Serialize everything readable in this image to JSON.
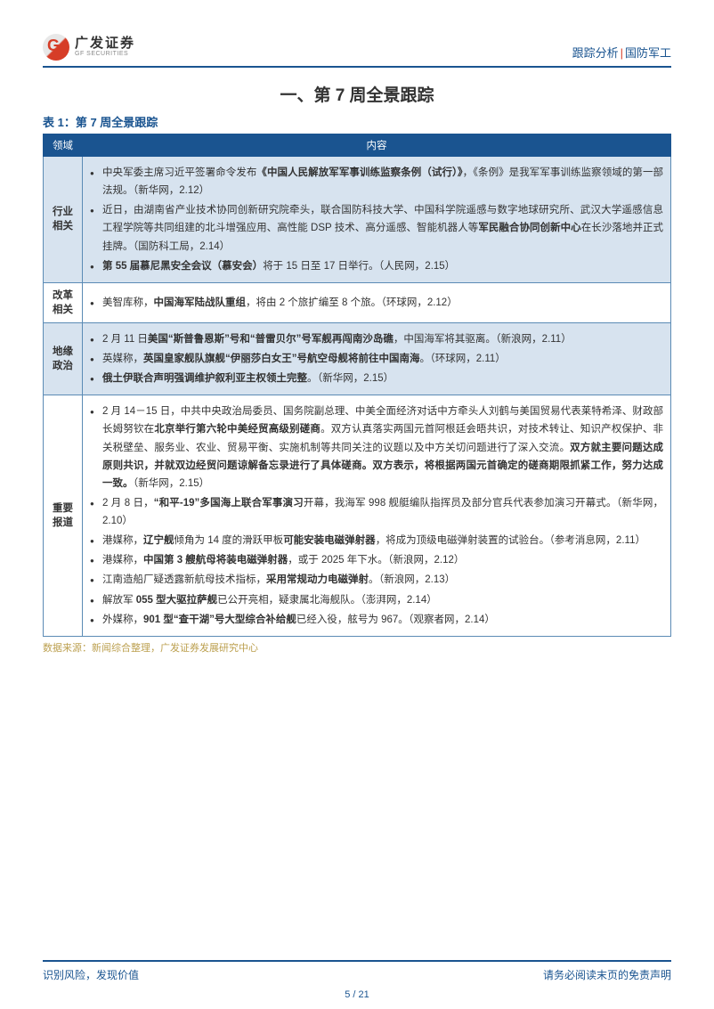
{
  "header": {
    "logo_cn": "广发证券",
    "logo_en": "GF SECURITIES",
    "right_left": "跟踪分析",
    "right_right": "国防军工"
  },
  "section_title": "一、第 7 周全景跟踪",
  "table_caption": "表 1：第 7 周全景跟踪",
  "table": {
    "header_col1": "领域",
    "header_col2": "内容",
    "rows": [
      {
        "category": "行业相关",
        "shade": "even",
        "items": [
          "中央军委主席习近平签署命令发布<b>《中国人民解放军军事训练监察条例（试行）》</b>，《条例》是我军军事训练监察领域的第一部法规。（新华网，2.12）",
          "近日，由湖南省产业技术协同创新研究院牵头，联合国防科技大学、中国科学院遥感与数字地球研究所、武汉大学遥感信息工程学院等共同组建的北斗增强应用、高性能 DSP 技术、高分遥感、智能机器人等<b>军民融合协同创新中心</b>在长沙落地并正式挂牌。（国防科工局，2.14）",
          "<b>第 55 届慕尼黑安全会议（慕安会）</b>将于 15 日至 17 日举行。（人民网，2.15）"
        ]
      },
      {
        "category": "改革相关",
        "shade": "odd",
        "items": [
          "美智库称，<b>中国海军陆战队重组</b>，将由 2 个旅扩编至 8 个旅。（环球网，2.12）"
        ]
      },
      {
        "category": "地缘政治",
        "shade": "even",
        "items": [
          "2 月 11 日<b>美国“斯普鲁恩斯”号和“普雷贝尔”号军舰再闯南沙岛礁</b>，中国海军将其驱离。（新浪网，2.11）",
          "英媒称，<b>英国皇家舰队旗舰“伊丽莎白女王”号航空母舰将前往中国南海</b>。（环球网，2.11）",
          "<b>俄土伊联合声明强调维护叙利亚主权领土完整</b>。（新华网，2.15）"
        ]
      },
      {
        "category": "重要报道",
        "shade": "odd",
        "items": [
          "2 月 14－15 日，中共中央政治局委员、国务院副总理、中美全面经济对话中方牵头人刘鹤与美国贸易代表莱特希泽、财政部长姆努钦在<b>北京举行第六轮中美经贸高级别磋商</b>。双方认真落实两国元首阿根廷会晤共识，对技术转让、知识产权保护、非关税壁垒、服务业、农业、贸易平衡、实施机制等共同关注的议题以及中方关切问题进行了深入交流。<b>双方就主要问题达成原则共识，并就双边经贸问题谅解备忘录进行了具体磋商。双方表示，将根据两国元首确定的磋商期限抓紧工作，努力达成一致。</b>（新华网，2.15）",
          "2 月 8 日，<b>“和平-19”多国海上联合军事演习</b>开幕，我海军 998 舰艇编队指挥员及部分官兵代表参加演习开幕式。（新华网，2.10）",
          "港媒称，<b>辽宁舰</b>倾角为 14 度的滑跃甲板<b>可能安装电磁弹射器</b>，将成为顶级电磁弹射装置的试验台。（参考消息网，2.11）",
          "港媒称，<b>中国第 3 艘航母将装电磁弹射器</b>，或于 2025 年下水。（新浪网，2.12）",
          "江南造船厂疑透露新航母技术指标，<b>采用常规动力电磁弹射</b>。（新浪网，2.13）",
          "解放军 <b>055 型大驱拉萨舰</b>已公开亮相，疑隶属北海舰队。（澎湃网，2.14）",
          "外媒称，<b>901 型“查干湖”号大型综合补给舰</b>已经入役，舷号为 967。（观察者网，2.14）"
        ]
      }
    ]
  },
  "source_note": "数据来源：新闻综合整理，广发证券发展研究中心",
  "footer": {
    "left": "识别风险，发现价值",
    "right": "请务必阅读末页的免责声明",
    "page": "5 / 21"
  },
  "colors": {
    "brand_blue": "#1a5490",
    "brand_red": "#d63d27",
    "row_shade": "#d7e3ef",
    "source_color": "#bca050"
  }
}
